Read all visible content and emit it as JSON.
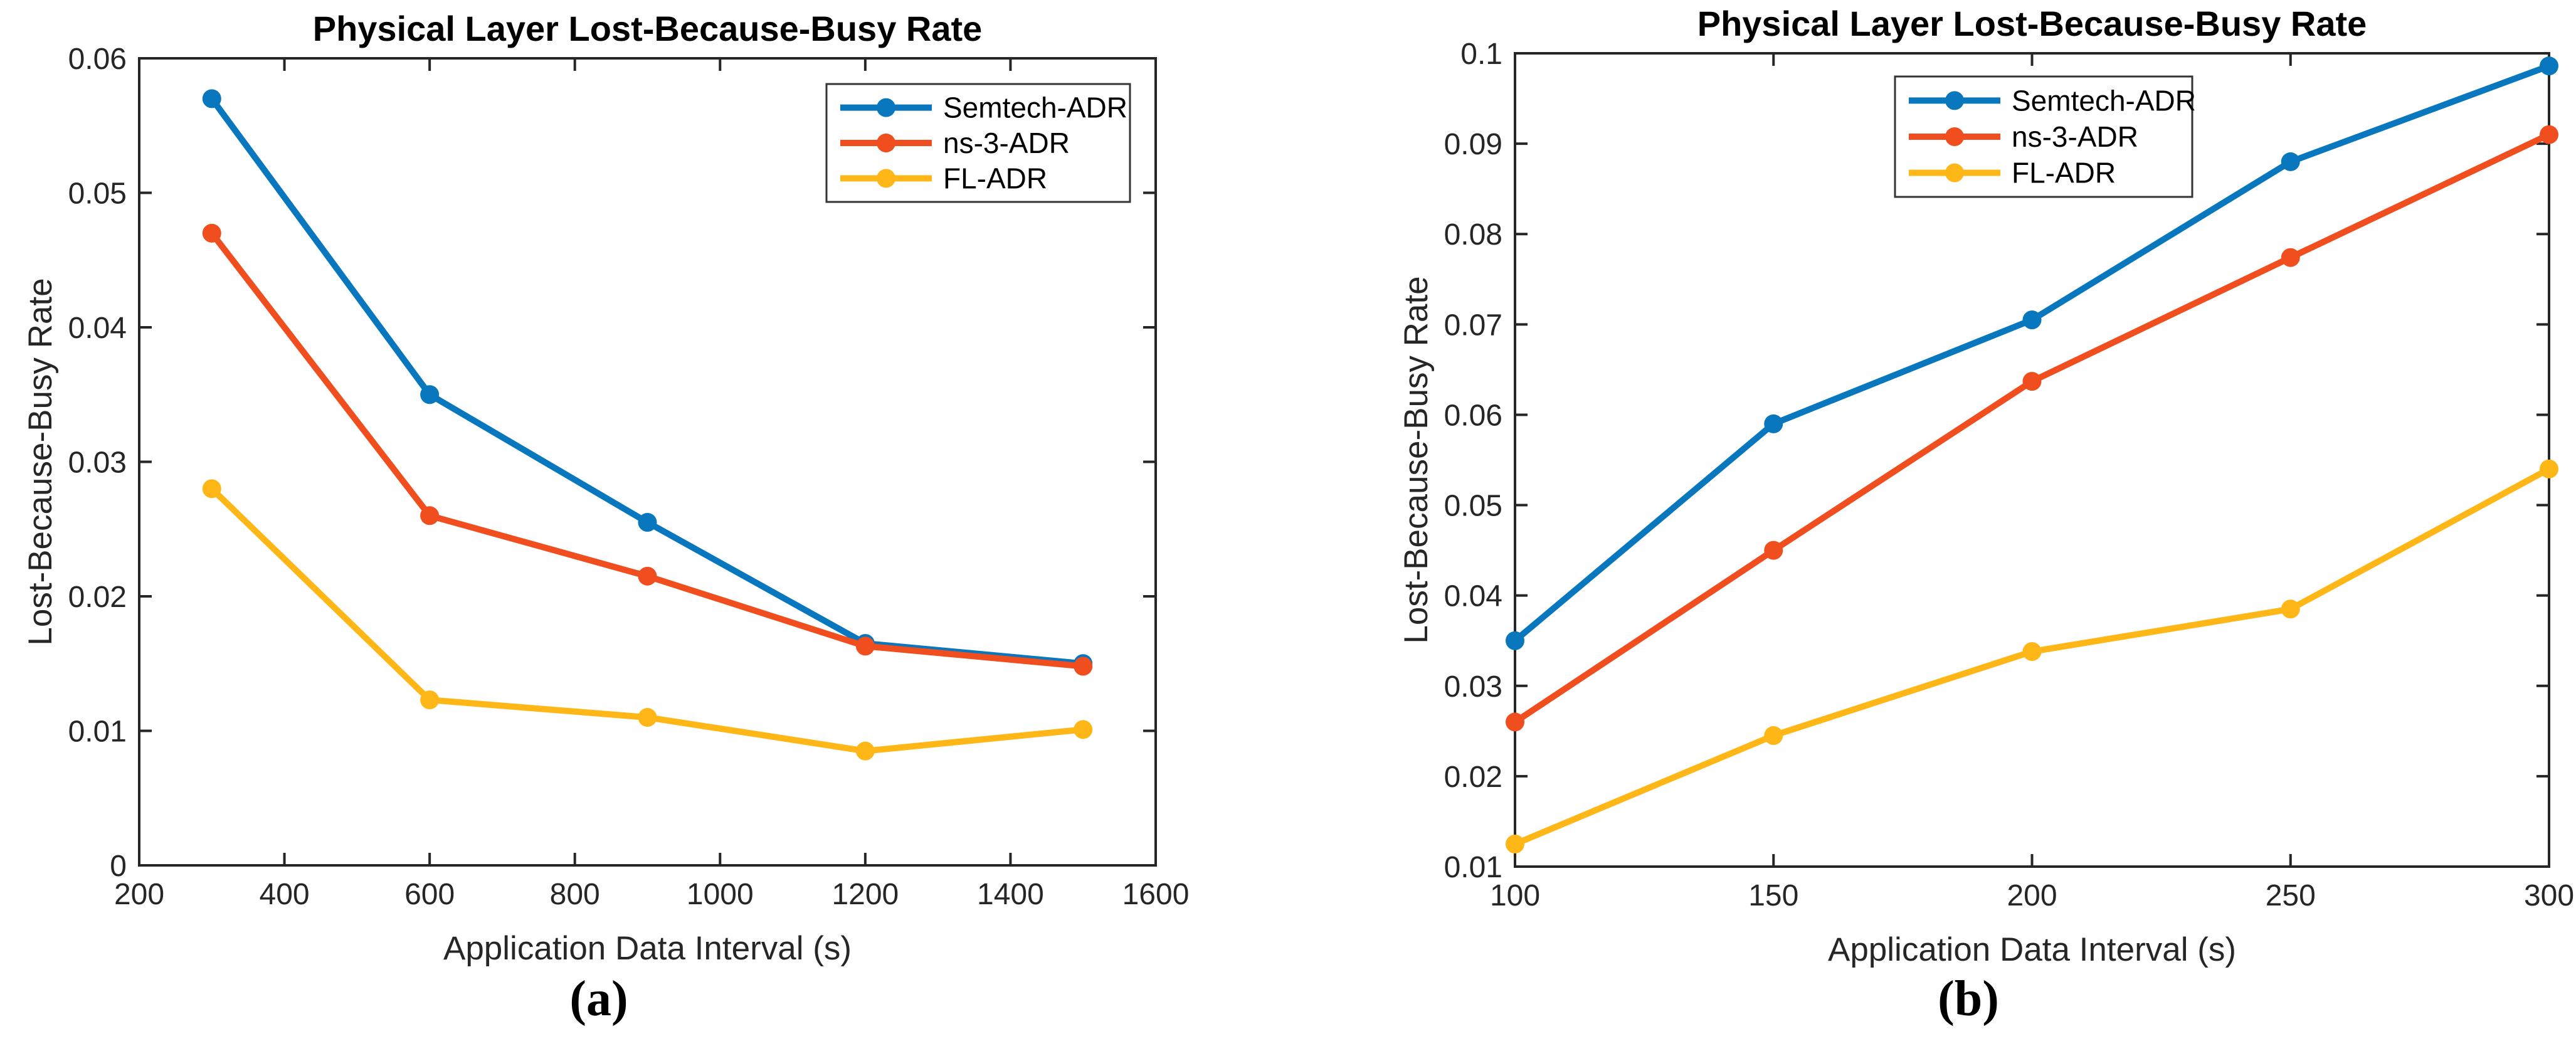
{
  "chart_data": [
    {
      "id": "a",
      "type": "line",
      "title": "Physical Layer Lost-Because-Busy Rate",
      "xlabel": "Application Data Interval (s)",
      "ylabel": "Lost-Because-Busy Rate",
      "caption": "(a)",
      "x": [
        300,
        600,
        900,
        1200,
        1500
      ],
      "xlim": [
        200,
        1600
      ],
      "xticks": [
        200,
        400,
        600,
        800,
        1000,
        1200,
        1400,
        1600
      ],
      "xtick_labels": [
        "200",
        "400",
        "600",
        "800",
        "1000",
        "1200",
        "1400",
        "1600"
      ],
      "ylim": [
        0,
        0.06
      ],
      "yticks": [
        0,
        0.01,
        0.02,
        0.03,
        0.04,
        0.05,
        0.06
      ],
      "ytick_labels": [
        "0",
        "0.01",
        "0.02",
        "0.03",
        "0.04",
        "0.05",
        "0.06"
      ],
      "grid": false,
      "legend_position": "top-right-inside",
      "series": [
        {
          "name": "Semtech-ADR",
          "color": "#0877BD",
          "values": [
            0.057,
            0.035,
            0.0255,
            0.0165,
            0.015
          ]
        },
        {
          "name": "ns-3-ADR",
          "color": "#F04E1E",
          "values": [
            0.047,
            0.026,
            0.0215,
            0.0163,
            0.0148
          ]
        },
        {
          "name": "FL-ADR",
          "color": "#FFB717",
          "values": [
            0.028,
            0.0123,
            0.011,
            0.0085,
            0.0101
          ]
        }
      ]
    },
    {
      "id": "b",
      "type": "line",
      "title": "Physical Layer Lost-Because-Busy Rate",
      "xlabel": "Application Data Interval (s)",
      "ylabel": "Lost-Because-Busy Rate",
      "caption": "(b)",
      "x": [
        100,
        150,
        200,
        250,
        300
      ],
      "xlim": [
        100,
        300
      ],
      "xticks": [
        100,
        150,
        200,
        250,
        300
      ],
      "xtick_labels": [
        "100",
        "150",
        "200",
        "250",
        "300"
      ],
      "ylim": [
        0.01,
        0.1
      ],
      "yticks": [
        0.01,
        0.02,
        0.03,
        0.04,
        0.05,
        0.06,
        0.07,
        0.08,
        0.09,
        0.1
      ],
      "ytick_labels": [
        "0.01",
        "0.02",
        "0.03",
        "0.04",
        "0.05",
        "0.06",
        "0.07",
        "0.08",
        "0.09",
        "0.1"
      ],
      "grid": false,
      "legend_position": "top-center-inside",
      "series": [
        {
          "name": "Semtech-ADR",
          "color": "#0877BD",
          "values": [
            0.035,
            0.059,
            0.0705,
            0.088,
            0.0986
          ]
        },
        {
          "name": "ns-3-ADR",
          "color": "#F04E1E",
          "values": [
            0.026,
            0.045,
            0.0637,
            0.0774,
            0.091
          ]
        },
        {
          "name": "FL-ADR",
          "color": "#FFB717",
          "values": [
            0.0125,
            0.0245,
            0.0338,
            0.0385,
            0.054
          ]
        }
      ]
    }
  ],
  "style": {
    "axis_color": "#262626",
    "title_color": "#000000",
    "background": "#ffffff"
  }
}
